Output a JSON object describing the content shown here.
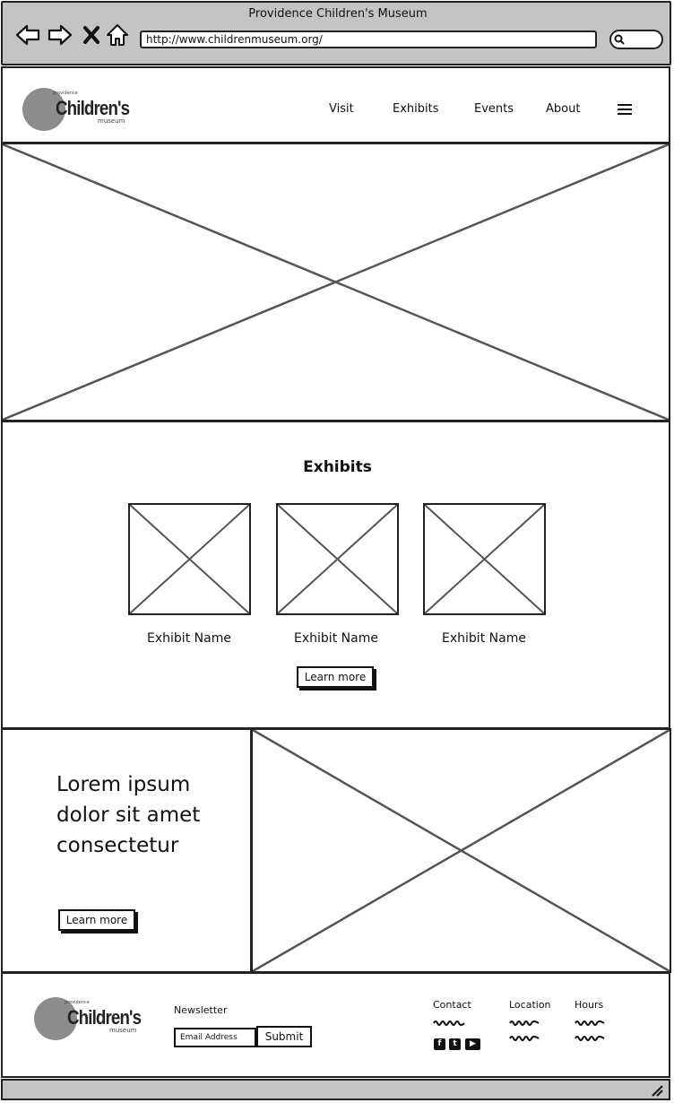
{
  "browser": {
    "window_title": "Providence Children's Museum",
    "url": "http://www.childrenmuseum.org/"
  },
  "header": {
    "logo": {
      "name": "Children's",
      "subtitle": "museum",
      "tagline": "providence"
    },
    "nav": [
      "Visit",
      "Exhibits",
      "Events",
      "About"
    ]
  },
  "exhibits": {
    "title": "Exhibits",
    "items": [
      {
        "name": "Exhibit Name"
      },
      {
        "name": "Exhibit Name"
      },
      {
        "name": "Exhibit Name"
      }
    ],
    "button_label": "Learn more"
  },
  "feature": {
    "text": "Lorem ipsum dolor sit amet consectetur",
    "button_label": "Learn more"
  },
  "footer": {
    "newsletter_label": "Newsletter",
    "email_placeholder": "Email Address",
    "submit_label": "Submit",
    "columns": [
      "Contact",
      "Location",
      "Hours"
    ],
    "social": [
      "facebook-icon",
      "twitter-icon",
      "youtube-icon"
    ]
  },
  "colors": {
    "chrome": "#c4c4c4",
    "logo_circle": "#8c8c8c",
    "placeholder_line": "#555555"
  }
}
